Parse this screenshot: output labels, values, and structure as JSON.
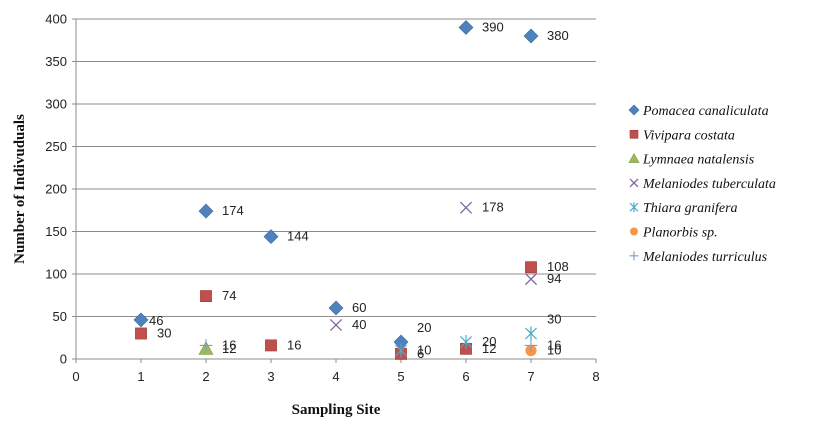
{
  "chart_data": {
    "type": "scatter",
    "title": "",
    "xlabel": "Sampling Site",
    "ylabel": "Number of Indivuduals",
    "xlim": [
      0,
      8
    ],
    "ylim": [
      0,
      400
    ],
    "xticks": [
      0,
      1,
      2,
      3,
      4,
      5,
      6,
      7,
      8
    ],
    "yticks": [
      0,
      50,
      100,
      150,
      200,
      250,
      300,
      350,
      400
    ],
    "grid": "horizontal",
    "legend_position": "right",
    "series": [
      {
        "name": "Pomacea canaliculata",
        "marker": "diamond",
        "color": "#4F81BD",
        "points": [
          [
            1,
            46
          ],
          [
            2,
            174
          ],
          [
            3,
            144
          ],
          [
            4,
            60
          ],
          [
            5,
            20
          ],
          [
            6,
            390
          ],
          [
            7,
            380
          ]
        ],
        "labels": [
          "46",
          "174",
          "144",
          "60",
          "20",
          "390",
          "380"
        ]
      },
      {
        "name": "Vivipara costata",
        "marker": "square",
        "color": "#C0504D",
        "points": [
          [
            1,
            30
          ],
          [
            2,
            74
          ],
          [
            3,
            16
          ],
          [
            5,
            6
          ],
          [
            6,
            12
          ],
          [
            7,
            108
          ]
        ],
        "labels": [
          "30",
          "74",
          "16",
          "6",
          "12",
          "108"
        ]
      },
      {
        "name": "Lymnaea natalensis",
        "marker": "triangle",
        "color": "#9BBB59",
        "points": [
          [
            2,
            12
          ]
        ],
        "labels": [
          "12"
        ]
      },
      {
        "name": "Melaniodes tuberculata",
        "marker": "x",
        "color": "#8064A2",
        "points": [
          [
            4,
            40
          ],
          [
            6,
            178
          ],
          [
            7,
            94
          ]
        ],
        "labels": [
          "40",
          "178",
          "94"
        ]
      },
      {
        "name": "Thiara granifera",
        "marker": "asterisk",
        "color": "#4BACC6",
        "points": [
          [
            5,
            10
          ],
          [
            6,
            20
          ],
          [
            7,
            30
          ]
        ],
        "labels": [
          "10",
          "20",
          "30"
        ]
      },
      {
        "name": "Planorbis sp.",
        "marker": "circle",
        "color": "#F79646",
        "points": [
          [
            7,
            10
          ]
        ],
        "labels": [
          "10"
        ]
      },
      {
        "name": "Melaniodes turriculus",
        "marker": "plus",
        "color": "#7F9CC6",
        "points": [
          [
            2,
            16
          ],
          [
            7,
            16
          ]
        ],
        "labels": [
          "16",
          "16"
        ]
      }
    ]
  }
}
